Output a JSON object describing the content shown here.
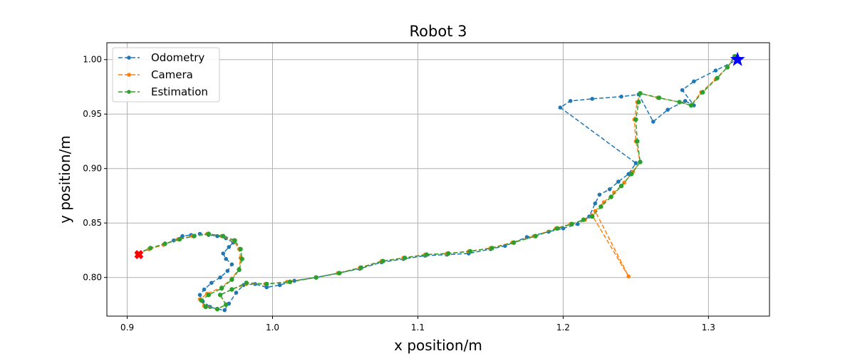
{
  "chart_data": {
    "type": "line",
    "title": "Robot 3",
    "xlabel": "x position/m",
    "ylabel": "y position/m",
    "xlim": [
      0.886,
      1.342
    ],
    "ylim": [
      0.7645,
      1.0155
    ],
    "xticks": [
      0.9,
      1.0,
      1.1,
      1.2,
      1.3
    ],
    "xtick_labels": [
      "0.9",
      "1.0",
      "1.1",
      "1.2",
      "1.3"
    ],
    "yticks": [
      0.8,
      0.85,
      0.9,
      0.95,
      1.0
    ],
    "ytick_labels": [
      "0.80",
      "0.85",
      "0.90",
      "0.95",
      "1.00"
    ],
    "grid": true,
    "legend_position": "top-left",
    "series": [
      {
        "name": "Odometry",
        "color": "#1f77b4",
        "style": "dashed",
        "marker": "circle",
        "points": [
          [
            0.907,
            0.822
          ],
          [
            0.915,
            0.826
          ],
          [
            0.925,
            0.83
          ],
          [
            0.932,
            0.834
          ],
          [
            0.938,
            0.838
          ],
          [
            0.944,
            0.839
          ],
          [
            0.95,
            0.84
          ],
          [
            0.956,
            0.839
          ],
          [
            0.962,
            0.838
          ],
          [
            0.968,
            0.836
          ],
          [
            0.973,
            0.832
          ],
          [
            0.97,
            0.828
          ],
          [
            0.966,
            0.822
          ],
          [
            0.968,
            0.817
          ],
          [
            0.972,
            0.812
          ],
          [
            0.969,
            0.806
          ],
          [
            0.964,
            0.8
          ],
          [
            0.958,
            0.795
          ],
          [
            0.953,
            0.789
          ],
          [
            0.95,
            0.784
          ],
          [
            0.952,
            0.778
          ],
          [
            0.957,
            0.773
          ],
          [
            0.962,
            0.771
          ],
          [
            0.967,
            0.77
          ],
          [
            0.97,
            0.776
          ],
          [
            0.975,
            0.786
          ],
          [
            0.98,
            0.793
          ],
          [
            0.988,
            0.794
          ],
          [
            0.996,
            0.791
          ],
          [
            1.005,
            0.793
          ],
          [
            1.015,
            0.797
          ],
          [
            1.03,
            0.8
          ],
          [
            1.045,
            0.804
          ],
          [
            1.06,
            0.808
          ],
          [
            1.075,
            0.814
          ],
          [
            1.09,
            0.817
          ],
          [
            1.105,
            0.82
          ],
          [
            1.12,
            0.821
          ],
          [
            1.135,
            0.822
          ],
          [
            1.15,
            0.826
          ],
          [
            1.16,
            0.829
          ],
          [
            1.175,
            0.837
          ],
          [
            1.19,
            0.842
          ],
          [
            1.2,
            0.845
          ],
          [
            1.21,
            0.849
          ],
          [
            1.218,
            0.856
          ],
          [
            1.222,
            0.868
          ],
          [
            1.225,
            0.876
          ],
          [
            1.232,
            0.881
          ],
          [
            1.238,
            0.888
          ],
          [
            1.245,
            0.895
          ],
          [
            1.25,
            0.905
          ],
          [
            1.198,
            0.956
          ],
          [
            1.205,
            0.962
          ],
          [
            1.22,
            0.964
          ],
          [
            1.24,
            0.966
          ],
          [
            1.252,
            0.968
          ],
          [
            1.262,
            0.943
          ],
          [
            1.272,
            0.954
          ],
          [
            1.284,
            0.962
          ],
          [
            1.29,
            0.958
          ],
          [
            1.282,
            0.972
          ],
          [
            1.29,
            0.98
          ],
          [
            1.305,
            0.99
          ],
          [
            1.32,
            1.0
          ]
        ]
      },
      {
        "name": "Camera",
        "color": "#ff7f0e",
        "style": "dashed",
        "marker": "circle",
        "points": [
          [
            0.907,
            0.822
          ],
          [
            0.915,
            0.826
          ],
          [
            0.925,
            0.83
          ],
          [
            0.935,
            0.835
          ],
          [
            0.945,
            0.838
          ],
          [
            0.955,
            0.84
          ],
          [
            0.965,
            0.838
          ],
          [
            0.973,
            0.834
          ],
          [
            0.977,
            0.826
          ],
          [
            0.978,
            0.818
          ],
          [
            0.977,
            0.808
          ],
          [
            0.972,
            0.799
          ],
          [
            0.965,
            0.791
          ],
          [
            0.955,
            0.785
          ],
          [
            0.95,
            0.78
          ],
          [
            0.953,
            0.774
          ],
          [
            0.962,
            0.771
          ],
          [
            0.968,
            0.775
          ],
          [
            0.964,
            0.784
          ],
          [
            0.972,
            0.789
          ],
          [
            0.982,
            0.794
          ],
          [
            0.995,
            0.794
          ],
          [
            1.01,
            0.796
          ],
          [
            1.03,
            0.8
          ],
          [
            1.045,
            0.804
          ],
          [
            1.06,
            0.809
          ],
          [
            1.075,
            0.815
          ],
          [
            1.09,
            0.818
          ],
          [
            1.105,
            0.821
          ],
          [
            1.12,
            0.822
          ],
          [
            1.135,
            0.824
          ],
          [
            1.15,
            0.827
          ],
          [
            1.165,
            0.832
          ],
          [
            1.18,
            0.838
          ],
          [
            1.195,
            0.845
          ],
          [
            1.205,
            0.849
          ],
          [
            1.215,
            0.853
          ],
          [
            1.22,
            0.857
          ],
          [
            1.245,
            0.801
          ],
          [
            1.222,
            0.861
          ],
          [
            1.228,
            0.869
          ],
          [
            1.235,
            0.878
          ],
          [
            1.242,
            0.887
          ],
          [
            1.248,
            0.897
          ],
          [
            1.253,
            0.906
          ],
          [
            1.25,
            0.925
          ],
          [
            1.249,
            0.945
          ],
          [
            1.251,
            0.961
          ],
          [
            1.253,
            0.969
          ],
          [
            1.265,
            0.965
          ],
          [
            1.28,
            0.961
          ],
          [
            1.288,
            0.958
          ],
          [
            1.295,
            0.97
          ],
          [
            1.305,
            0.982
          ],
          [
            1.313,
            0.993
          ],
          [
            1.318,
            1.002
          ]
        ]
      },
      {
        "name": "Estimation",
        "color": "#2ca02c",
        "style": "dashed",
        "marker": "circle",
        "points": [
          [
            0.907,
            0.822
          ],
          [
            0.916,
            0.827
          ],
          [
            0.926,
            0.831
          ],
          [
            0.936,
            0.835
          ],
          [
            0.946,
            0.838
          ],
          [
            0.956,
            0.84
          ],
          [
            0.966,
            0.838
          ],
          [
            0.974,
            0.834
          ],
          [
            0.978,
            0.826
          ],
          [
            0.979,
            0.817
          ],
          [
            0.977,
            0.807
          ],
          [
            0.972,
            0.798
          ],
          [
            0.965,
            0.79
          ],
          [
            0.956,
            0.784
          ],
          [
            0.951,
            0.779
          ],
          [
            0.954,
            0.773
          ],
          [
            0.962,
            0.771
          ],
          [
            0.968,
            0.775
          ],
          [
            0.964,
            0.784
          ],
          [
            0.972,
            0.789
          ],
          [
            0.982,
            0.795
          ],
          [
            0.996,
            0.794
          ],
          [
            1.012,
            0.796
          ],
          [
            1.03,
            0.8
          ],
          [
            1.046,
            0.804
          ],
          [
            1.061,
            0.809
          ],
          [
            1.076,
            0.815
          ],
          [
            1.091,
            0.818
          ],
          [
            1.106,
            0.821
          ],
          [
            1.121,
            0.822
          ],
          [
            1.136,
            0.824
          ],
          [
            1.151,
            0.827
          ],
          [
            1.166,
            0.832
          ],
          [
            1.181,
            0.838
          ],
          [
            1.196,
            0.845
          ],
          [
            1.206,
            0.849
          ],
          [
            1.214,
            0.853
          ],
          [
            1.22,
            0.856
          ],
          [
            1.226,
            0.865
          ],
          [
            1.233,
            0.874
          ],
          [
            1.24,
            0.884
          ],
          [
            1.247,
            0.895
          ],
          [
            1.253,
            0.906
          ],
          [
            1.251,
            0.925
          ],
          [
            1.25,
            0.945
          ],
          [
            1.252,
            0.961
          ],
          [
            1.253,
            0.969
          ],
          [
            1.266,
            0.965
          ],
          [
            1.28,
            0.961
          ],
          [
            1.288,
            0.958
          ],
          [
            1.296,
            0.97
          ],
          [
            1.306,
            0.983
          ],
          [
            1.313,
            0.993
          ],
          [
            1.318,
            1.003
          ]
        ]
      }
    ],
    "markers": [
      {
        "name": "start",
        "shape": "x-filled",
        "color": "#ff0000",
        "x": 0.908,
        "y": 0.821
      },
      {
        "name": "goal",
        "shape": "star",
        "color": "#0000ff",
        "x": 1.32,
        "y": 1.0
      }
    ]
  }
}
